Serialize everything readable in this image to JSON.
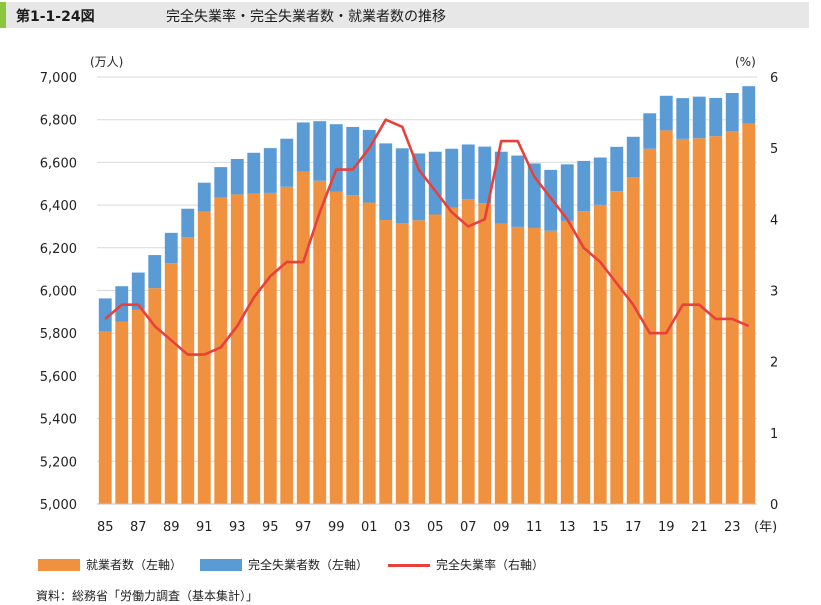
{
  "header": {
    "figure_number": "第1-1-24図",
    "title": "完全失業率・完全失業者数・就業者数の推移"
  },
  "chart_data": {
    "type": "bar",
    "subtype": "stacked-bar-with-line",
    "title": "完全失業率・完全失業者数・就業者数の推移",
    "x": [
      1985,
      1986,
      1987,
      1988,
      1989,
      1990,
      1991,
      1992,
      1993,
      1994,
      1995,
      1996,
      1997,
      1998,
      1999,
      2000,
      2001,
      2002,
      2003,
      2004,
      2005,
      2006,
      2007,
      2008,
      2009,
      2010,
      2011,
      2012,
      2013,
      2014,
      2015,
      2016,
      2017,
      2018,
      2019,
      2020,
      2021,
      2022,
      2023,
      2024
    ],
    "x_tick_labels": [
      "85",
      "87",
      "89",
      "91",
      "93",
      "95",
      "97",
      "99",
      "01",
      "03",
      "05",
      "07",
      "09",
      "11",
      "13",
      "15",
      "17",
      "19",
      "21",
      "23"
    ],
    "x_unit": "(年)",
    "y_left_unit": "(万人)",
    "y_right_unit": "(%)",
    "ylim_left": [
      5000,
      7000
    ],
    "y_left_ticks": [
      "5,000",
      "5,200",
      "5,400",
      "5,600",
      "5,800",
      "6,000",
      "6,200",
      "6,400",
      "6,600",
      "6,800",
      "7,000"
    ],
    "ylim_right": [
      0,
      6
    ],
    "y_right_ticks": [
      "0",
      "1",
      "2",
      "3",
      "4",
      "5",
      "6"
    ],
    "series": [
      {
        "name": "就業者数（左軸）",
        "axis": "left",
        "kind": "bar",
        "color": "#f0913f",
        "values": [
          5807,
          5853,
          5911,
          6011,
          6128,
          6249,
          6369,
          6436,
          6450,
          6453,
          6457,
          6486,
          6557,
          6514,
          6462,
          6446,
          6412,
          6330,
          6316,
          6329,
          6356,
          6389,
          6427,
          6409,
          6314,
          6298,
          6293,
          6280,
          6326,
          6371,
          6401,
          6465,
          6530,
          6664,
          6750,
          6710,
          6713,
          6723,
          6747,
          6781
        ]
      },
      {
        "name": "完全失業者数（左軸）",
        "axis": "left",
        "kind": "bar",
        "color": "#5b9bd5",
        "values": [
          156,
          167,
          173,
          155,
          142,
          134,
          136,
          142,
          166,
          192,
          210,
          225,
          230,
          279,
          317,
          320,
          340,
          359,
          350,
          313,
          294,
          275,
          257,
          265,
          336,
          334,
          302,
          285,
          265,
          236,
          222,
          208,
          190,
          166,
          162,
          191,
          195,
          179,
          178,
          176
        ]
      },
      {
        "name": "完全失業率（右軸）",
        "axis": "right",
        "kind": "line",
        "color": "#e8413c",
        "values": [
          2.6,
          2.8,
          2.8,
          2.5,
          2.3,
          2.1,
          2.1,
          2.2,
          2.5,
          2.9,
          3.2,
          3.4,
          3.4,
          4.1,
          4.7,
          4.7,
          5.0,
          5.4,
          5.3,
          4.7,
          4.4,
          4.1,
          3.9,
          4.0,
          5.1,
          5.1,
          4.6,
          4.3,
          4.0,
          3.6,
          3.4,
          3.1,
          2.8,
          2.4,
          2.4,
          2.8,
          2.8,
          2.6,
          2.6,
          2.5
        ]
      }
    ]
  },
  "source": "資料：総務省「労働力調査（基本集計）」"
}
